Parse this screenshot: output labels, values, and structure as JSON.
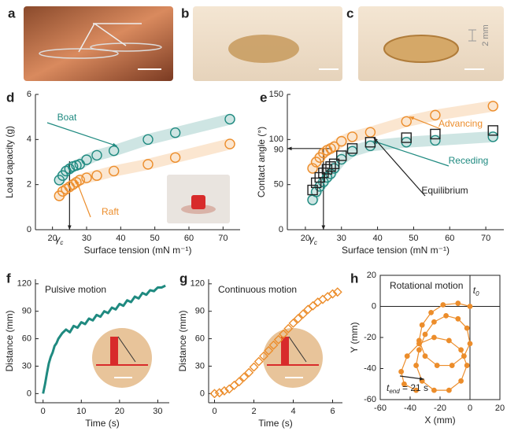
{
  "photos": [
    {
      "panel": "a"
    },
    {
      "panel": "b"
    },
    {
      "panel": "c",
      "annotation": "2 mm"
    }
  ],
  "chart_data": [
    {
      "panel": "d",
      "type": "scatter",
      "x_label": "Surface tension (mN m⁻¹)",
      "y_label": "Load capacity (g)",
      "xlim": [
        15,
        75
      ],
      "ylim": [
        0,
        6
      ],
      "xticks": [
        20,
        30,
        40,
        50,
        60,
        70
      ],
      "yticks": [
        0,
        2,
        4,
        6
      ],
      "frame": "axes",
      "critical_x": {
        "symbol": "γ",
        "subscript": "c",
        "value": 25
      },
      "series": [
        {
          "name": "Boat",
          "color": "#1f8a80",
          "marker": "circle",
          "band": true,
          "x": [
            22,
            23,
            24,
            25,
            26,
            27,
            28,
            30,
            33,
            38,
            48,
            56,
            72
          ],
          "values": [
            2.2,
            2.4,
            2.6,
            2.7,
            2.8,
            2.85,
            2.9,
            3.1,
            3.3,
            3.5,
            4.0,
            4.3,
            4.9
          ]
        },
        {
          "name": "Raft",
          "color": "#ec8d2b",
          "marker": "circle",
          "band": true,
          "x": [
            22,
            23,
            24,
            25,
            26,
            27,
            28,
            30,
            33,
            38,
            48,
            56,
            72
          ],
          "values": [
            1.5,
            1.7,
            1.8,
            1.9,
            2.0,
            2.1,
            2.2,
            2.3,
            2.4,
            2.6,
            2.9,
            3.2,
            3.8
          ]
        }
      ]
    },
    {
      "panel": "e",
      "type": "scatter",
      "x_label": "Surface tension (mN m⁻¹)",
      "y_label": "Contact angle (°)",
      "xlim": [
        15,
        75
      ],
      "ylim": [
        0,
        150
      ],
      "xticks": [
        20,
        30,
        40,
        50,
        60,
        70
      ],
      "yticks": [
        0,
        50,
        90,
        100,
        150
      ],
      "frame": "axes",
      "critical_x": {
        "symbol": "γ",
        "subscript": "c",
        "value": 25
      },
      "series": [
        {
          "name": "Advancing",
          "color": "#ec8d2b",
          "marker": "circle",
          "band": true,
          "x": [
            22,
            23,
            24,
            25,
            26,
            27,
            28,
            30,
            33,
            38,
            48,
            56,
            72
          ],
          "values": [
            68,
            75,
            80,
            85,
            88,
            90,
            92,
            98,
            103,
            108,
            120,
            127,
            137
          ]
        },
        {
          "name": "Receding",
          "color": "#1f8a80",
          "marker": "circle",
          "band": true,
          "x": [
            22,
            23,
            24,
            25,
            26,
            27,
            28,
            30,
            33,
            38,
            48,
            56,
            72
          ],
          "values": [
            33,
            42,
            48,
            53,
            58,
            62,
            68,
            78,
            87,
            93,
            97,
            99,
            103
          ]
        },
        {
          "name": "Equilibrium",
          "color": "#222222",
          "marker": "square",
          "band": false,
          "x": [
            22,
            23,
            24,
            25,
            26,
            27,
            28,
            30,
            33,
            38,
            48,
            56,
            72
          ],
          "values": [
            44,
            52,
            58,
            63,
            67,
            70,
            73,
            82,
            90,
            97,
            102,
            106,
            110
          ]
        }
      ]
    },
    {
      "panel": "f",
      "type": "line",
      "title": "Pulsive motion",
      "x_label": "Time (s)",
      "y_label": "Distance (mm)",
      "xlim": [
        -2,
        33
      ],
      "ylim": [
        -10,
        125
      ],
      "xticks": [
        0,
        10,
        20,
        30
      ],
      "yticks": [
        0,
        30,
        60,
        90,
        120
      ],
      "frame": "axes",
      "series": [
        {
          "color": "#1f8a80",
          "x": [
            0,
            0.5,
            1,
            1.5,
            2,
            2.5,
            3,
            3.5,
            4,
            4.5,
            5,
            6,
            7,
            8,
            9,
            10,
            11,
            12,
            13,
            14,
            15,
            16,
            17,
            18,
            19,
            20,
            21,
            22,
            23,
            24,
            25,
            26,
            27,
            28,
            29,
            30,
            31,
            32
          ],
          "values": [
            0,
            10,
            22,
            33,
            40,
            45,
            52,
            55,
            60,
            63,
            66,
            70,
            67,
            74,
            72,
            78,
            76,
            82,
            80,
            86,
            84,
            90,
            88,
            94,
            92,
            98,
            96,
            102,
            100,
            106,
            104,
            110,
            108,
            113,
            112,
            116,
            116,
            118
          ]
        }
      ]
    },
    {
      "panel": "g",
      "type": "scatter",
      "title": "Continuous motion",
      "x_label": "Time (s)",
      "y_label": "Distance (mm)",
      "xlim": [
        -0.3,
        6.5
      ],
      "ylim": [
        -10,
        125
      ],
      "xticks": [
        0,
        2,
        4,
        6
      ],
      "yticks": [
        0,
        30,
        60,
        90,
        120
      ],
      "frame": "axes",
      "series": [
        {
          "color": "#ec8d2b",
          "marker": "diamond",
          "band": false,
          "x": [
            0,
            0.25,
            0.5,
            0.75,
            1,
            1.25,
            1.5,
            1.75,
            2,
            2.25,
            2.5,
            2.75,
            3,
            3.25,
            3.5,
            3.75,
            4,
            4.25,
            4.5,
            4.75,
            5,
            5.25,
            5.5,
            5.75,
            6,
            6.25
          ],
          "values": [
            0,
            1,
            3,
            5,
            9,
            13,
            18,
            23,
            29,
            35,
            41,
            47,
            53,
            59,
            65,
            71,
            77,
            82,
            87,
            92,
            96,
            100,
            103,
            106,
            109,
            111
          ]
        }
      ]
    },
    {
      "panel": "h",
      "type": "line",
      "title": "Rotational motion",
      "x_label": "X (mm)",
      "y_label": "Y (mm)",
      "xlim": [
        -60,
        20
      ],
      "ylim": [
        -60,
        20
      ],
      "xticks": [
        -60,
        -40,
        -20,
        0,
        20
      ],
      "yticks": [
        -60,
        -40,
        -20,
        0,
        20
      ],
      "frame": "box",
      "zero_lines": true,
      "start_label": {
        "text": "t",
        "subscript": "0"
      },
      "end_label": {
        "text": "t",
        "subscript": "end",
        "suffix": " = 21 s"
      },
      "series": [
        {
          "color": "#ec8d2b",
          "marker": "circle",
          "x": [
            0,
            -8,
            -18,
            -26,
            -32,
            -34,
            -30,
            -22,
            -12,
            -4,
            0,
            -2,
            -8,
            -16,
            -24,
            -30,
            -34,
            -36,
            -32,
            -24,
            -14,
            -6,
            -2,
            -6,
            -14,
            -24,
            -34,
            -42,
            -46,
            -44,
            -36
          ],
          "values": [
            0,
            2,
            1,
            -4,
            -12,
            -22,
            -32,
            -38,
            -38,
            -32,
            -24,
            -14,
            -8,
            -6,
            -10,
            -18,
            -28,
            -38,
            -48,
            -54,
            -54,
            -48,
            -38,
            -28,
            -22,
            -20,
            -24,
            -32,
            -42,
            -50,
            -54
          ]
        }
      ]
    }
  ]
}
